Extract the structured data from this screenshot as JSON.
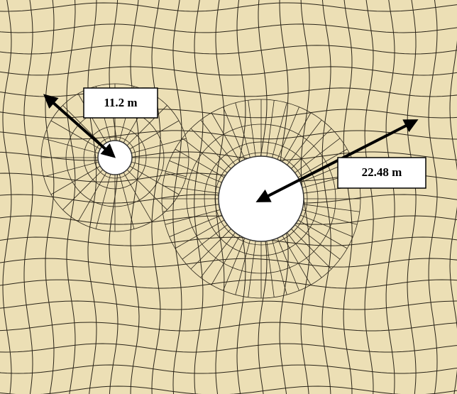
{
  "labels": [
    "11.2 m",
    "22.48 m"
  ]
}
